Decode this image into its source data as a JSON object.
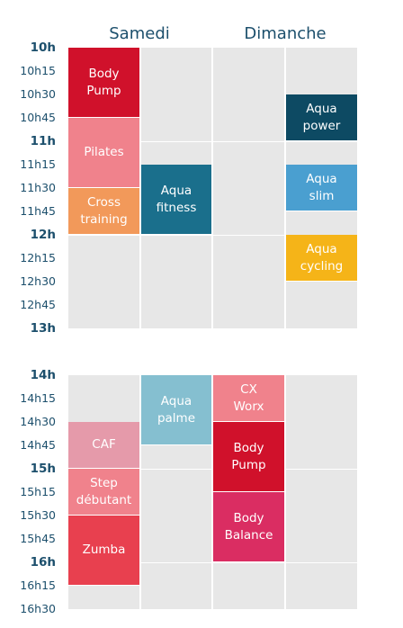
{
  "days": [
    "Samedi",
    "Dimanche"
  ],
  "blocks": [
    {
      "start": 10,
      "times": [
        "10h",
        "10h15",
        "10h30",
        "10h45",
        "11h",
        "11h15",
        "11h30",
        "11h45",
        "12h",
        "12h15",
        "12h30",
        "12h45",
        "13h"
      ],
      "events": [
        {
          "col": 0,
          "label": "Body\nPump",
          "start": 10.0,
          "end": 10.75,
          "color": "#d0112b"
        },
        {
          "col": 0,
          "label": "Pilates",
          "start": 10.75,
          "end": 11.5,
          "color": "#f0828c"
        },
        {
          "col": 0,
          "label": "Cross\ntraining",
          "start": 11.5,
          "end": 12.0,
          "color": "#f2995a"
        },
        {
          "col": 1,
          "label": "Aqua\nfitness",
          "start": 11.25,
          "end": 12.0,
          "color": "#1a6f8c"
        },
        {
          "col": 3,
          "label": "Aqua\npower",
          "start": 10.5,
          "end": 11.0,
          "color": "#0d4a63"
        },
        {
          "col": 3,
          "label": "Aqua\nslim",
          "start": 11.25,
          "end": 11.75,
          "color": "#4a9fd0"
        },
        {
          "col": 3,
          "label": "Aqua\ncycling",
          "start": 12.0,
          "end": 12.5,
          "color": "#f5b418"
        }
      ]
    },
    {
      "start": 14,
      "times": [
        "14h",
        "14h15",
        "14h30",
        "14h45",
        "15h",
        "15h15",
        "15h30",
        "15h45",
        "16h",
        "16h15",
        "16h30"
      ],
      "events": [
        {
          "col": 0,
          "label": "CAF",
          "start": 14.5,
          "end": 15.0,
          "color": "#e59aaa"
        },
        {
          "col": 0,
          "label": "Step\ndébutant",
          "start": 15.0,
          "end": 15.5,
          "color": "#f0828c"
        },
        {
          "col": 0,
          "label": "Zumba",
          "start": 15.5,
          "end": 16.25,
          "color": "#e8404f"
        },
        {
          "col": 1,
          "label": "Aqua\npalme",
          "start": 14.0,
          "end": 14.75,
          "color": "#85bfd0"
        },
        {
          "col": 2,
          "label": "CX\nWorx",
          "start": 14.0,
          "end": 14.5,
          "color": "#f0828c"
        },
        {
          "col": 2,
          "label": "Body\nPump",
          "start": 14.5,
          "end": 15.25,
          "color": "#d0112b"
        },
        {
          "col": 2,
          "label": "Body\nBalance",
          "start": 15.25,
          "end": 16.0,
          "color": "#da2d62"
        }
      ]
    }
  ]
}
